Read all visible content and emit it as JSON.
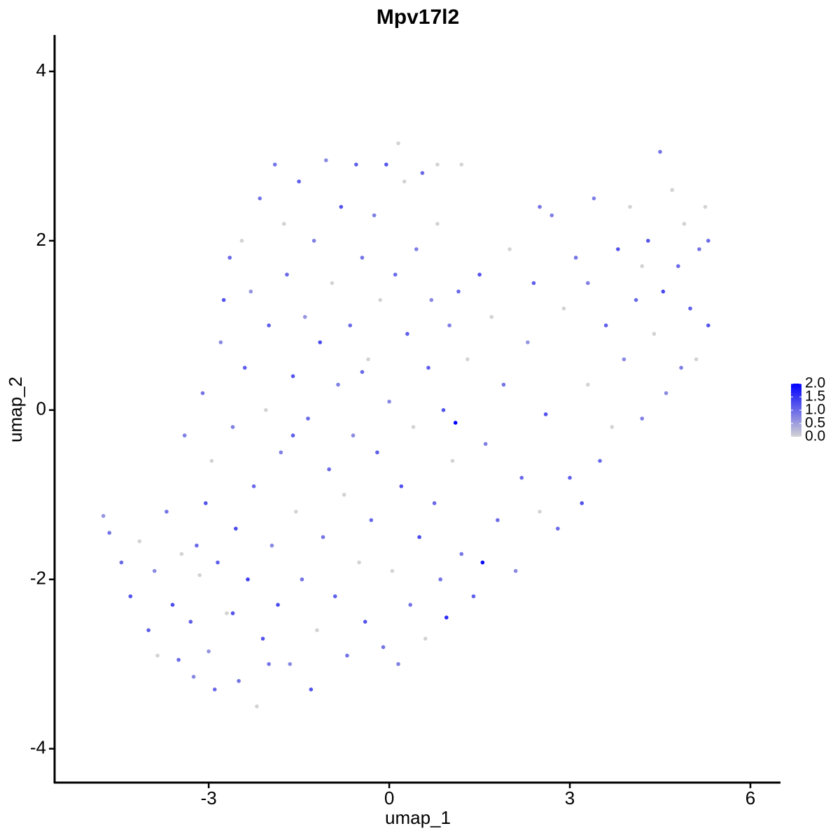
{
  "chart_data": {
    "type": "scatter",
    "title": "Mpv17l2",
    "x_label": "umap_1",
    "y_label": "umap_2",
    "xlim": [
      -5.56,
      6.5
    ],
    "ylim": [
      -4.4,
      4.43
    ],
    "xticks": [
      -3,
      0,
      3,
      6
    ],
    "yticks": [
      -4,
      -2,
      0,
      2,
      4
    ],
    "grid": false,
    "low_color": "#d3d3d3",
    "high_color": "#0000ff",
    "color_lim": [
      0,
      2
    ],
    "colorbar_ticks": [
      {
        "value": 0,
        "label": "0.0"
      },
      {
        "value": 0.5,
        "label": "0.5"
      },
      {
        "value": 1,
        "label": "1.0"
      },
      {
        "value": 1.5,
        "label": "1.5"
      },
      {
        "value": 2,
        "label": "2.0"
      }
    ],
    "x": [
      -4.75,
      -4.65,
      -4.45,
      -4.3,
      -4.15,
      -4.0,
      -3.9,
      -3.85,
      -3.7,
      -3.6,
      -3.5,
      -3.45,
      -3.4,
      -3.3,
      -3.25,
      -3.15,
      -3.1,
      -3.05,
      -3.0,
      -2.95,
      -2.9,
      -2.85,
      -2.8,
      -2.75,
      -2.7,
      -2.65,
      -2.6,
      -2.55,
      -2.5,
      -2.45,
      -2.4,
      -2.35,
      -2.3,
      -2.25,
      -2.2,
      -2.15,
      -2.1,
      -2.05,
      -2.0,
      -1.95,
      -1.9,
      -1.85,
      -1.8,
      -1.75,
      -1.7,
      -1.65,
      -1.6,
      -1.55,
      -1.5,
      -1.45,
      -1.4,
      -1.35,
      -1.3,
      -1.25,
      -1.2,
      -1.15,
      -1.1,
      -1.05,
      -1.0,
      -0.95,
      -0.9,
      -0.85,
      -0.8,
      -0.75,
      -0.7,
      -0.65,
      -0.6,
      -0.55,
      -0.5,
      -0.45,
      -0.4,
      -0.35,
      -0.3,
      -0.25,
      -0.2,
      -0.15,
      -0.1,
      -0.05,
      0.0,
      0.05,
      0.1,
      0.15,
      0.2,
      0.25,
      0.3,
      0.35,
      0.4,
      0.45,
      0.5,
      0.55,
      0.6,
      0.65,
      0.7,
      0.75,
      0.8,
      0.85,
      0.9,
      0.95,
      1.0,
      1.05,
      1.1,
      1.15,
      1.2,
      1.3,
      1.4,
      1.5,
      1.55,
      1.6,
      1.7,
      1.8,
      1.9,
      2.0,
      2.1,
      2.2,
      2.3,
      2.4,
      2.5,
      2.6,
      2.7,
      2.8,
      2.9,
      3.0,
      3.1,
      3.2,
      3.3,
      3.4,
      3.5,
      3.6,
      3.7,
      3.8,
      3.9,
      4.0,
      4.1,
      4.2,
      4.3,
      4.4,
      4.5,
      4.55,
      4.6,
      4.7,
      4.8,
      4.85,
      4.9,
      5.0,
      5.1,
      5.15,
      5.25,
      5.3,
      5.3,
      0.15,
      0.8,
      1.2,
      -0.45,
      -1.6,
      2.5,
      3.3,
      4.2,
      -2.0,
      -3.2,
      -2.6
    ],
    "y": [
      -1.25,
      -1.45,
      -1.8,
      -2.2,
      -1.55,
      -2.6,
      -1.9,
      -2.9,
      -1.2,
      -2.3,
      -2.95,
      -1.7,
      -0.3,
      -2.5,
      -3.15,
      -1.95,
      0.2,
      -1.1,
      -2.85,
      -0.6,
      -3.3,
      -1.8,
      0.8,
      1.3,
      -2.4,
      1.8,
      -0.2,
      -1.4,
      -3.2,
      2.0,
      0.5,
      -2.0,
      1.4,
      -0.9,
      -3.5,
      2.5,
      -2.7,
      0.0,
      1.0,
      -1.6,
      2.9,
      -2.3,
      -0.5,
      2.2,
      1.6,
      -3.0,
      0.4,
      -1.2,
      2.7,
      -2.0,
      1.1,
      -0.1,
      -3.3,
      2.0,
      -2.6,
      0.8,
      -1.5,
      2.95,
      -0.7,
      1.5,
      -2.2,
      0.3,
      2.4,
      -1.0,
      -2.9,
      1.0,
      -0.3,
      2.9,
      -1.8,
      1.8,
      -2.5,
      0.6,
      -1.3,
      2.3,
      -0.5,
      1.3,
      -2.8,
      2.9,
      0.1,
      -1.9,
      1.6,
      -3.0,
      -0.9,
      2.7,
      0.9,
      -2.3,
      -0.2,
      1.9,
      -1.5,
      2.8,
      -2.7,
      0.5,
      1.3,
      -1.1,
      2.2,
      -2.0,
      0.0,
      -2.45,
      1.0,
      -0.6,
      -0.15,
      1.4,
      -1.7,
      0.6,
      -2.2,
      1.6,
      -1.8,
      -0.4,
      1.1,
      -1.3,
      0.3,
      1.9,
      -1.9,
      -0.8,
      0.8,
      1.5,
      -1.2,
      -0.05,
      2.3,
      -1.4,
      1.2,
      -0.8,
      1.8,
      -1.1,
      0.3,
      2.5,
      -0.6,
      1.0,
      -0.2,
      1.9,
      0.6,
      2.4,
      1.3,
      -0.1,
      2.0,
      0.9,
      3.05,
      1.4,
      0.2,
      2.6,
      1.7,
      0.5,
      2.2,
      1.2,
      0.6,
      1.9,
      2.4,
      2.0,
      1.0,
      3.15,
      2.9,
      2.9,
      0.45,
      -0.3,
      2.4,
      1.5,
      1.7,
      -3.0,
      -1.6,
      -2.4
    ],
    "values": [
      0.6,
      0.9,
      1.0,
      1.2,
      0,
      1.1,
      0.7,
      0,
      0.9,
      1.3,
      1.0,
      0,
      0.8,
      1.1,
      0.7,
      0,
      0.9,
      1.2,
      0.6,
      0,
      1.0,
      1.1,
      0.7,
      1.2,
      0,
      1.0,
      0.8,
      1.3,
      0.9,
      0,
      1.1,
      1.4,
      0.6,
      1.0,
      0,
      0.9,
      1.2,
      0,
      1.1,
      0.7,
      0.9,
      1.3,
      0.8,
      0,
      1.0,
      0.7,
      1.2,
      0,
      1.1,
      0.9,
      0.6,
      1.0,
      1.2,
      0.8,
      0,
      1.3,
      0.9,
      0.7,
      1.0,
      0,
      1.1,
      0.8,
      1.2,
      0,
      0.9,
      1.0,
      0.7,
      1.1,
      0,
      0.9,
      1.2,
      0,
      1.0,
      0.8,
      1.1,
      0,
      0.9,
      1.2,
      0.7,
      0,
      1.0,
      0.8,
      1.2,
      0,
      1.1,
      0.9,
      0,
      0.8,
      1.3,
      1.0,
      0,
      1.1,
      0.7,
      1.0,
      0,
      0.9,
      1.2,
      1.6,
      0.8,
      0,
      2.0,
      1.0,
      0.9,
      0,
      1.1,
      1.2,
      1.9,
      0.8,
      0,
      1.0,
      0.9,
      0,
      0.7,
      1.0,
      0.6,
      1.1,
      0,
      1.2,
      0.8,
      1.0,
      0,
      1.1,
      0.9,
      1.2,
      0,
      0.8,
      1.0,
      1.1,
      0,
      1.2,
      0.7,
      0,
      1.0,
      0.8,
      1.2,
      0,
      0.9,
      1.3,
      0.7,
      0,
      1.0,
      0.8,
      0,
      1.1,
      0,
      0.9,
      0,
      1.0,
      1.2,
      0,
      0,
      0,
      1.0,
      1.1,
      0.9,
      0.8,
      0,
      0.9,
      1.0,
      1.2
    ]
  }
}
